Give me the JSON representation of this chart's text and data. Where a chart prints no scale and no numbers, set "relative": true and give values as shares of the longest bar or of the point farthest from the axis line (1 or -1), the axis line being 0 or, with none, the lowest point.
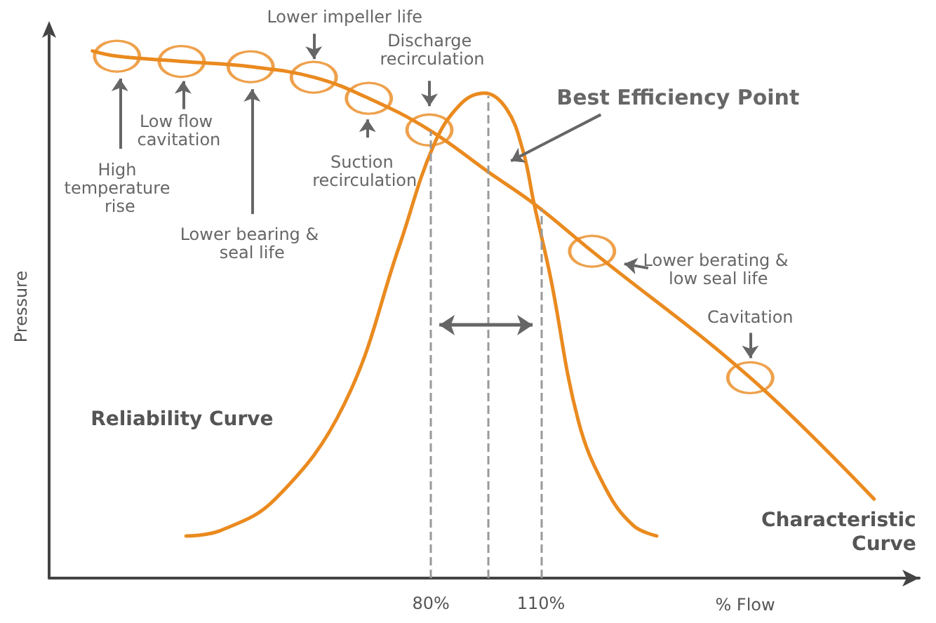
{
  "chart_data": {
    "type": "line",
    "xlabel": "% Flow",
    "ylabel": "Pressure",
    "relative": true,
    "xlim": [
      -24,
      213
    ],
    "xticks": [
      {
        "value": 80,
        "label": "80%"
      },
      {
        "value": 110,
        "label": "110%"
      }
    ],
    "grid": false,
    "legend": false,
    "line_style": "solid",
    "series": [
      {
        "name": "Characteristic Curve",
        "color": "#ea8a1f",
        "x": [
          -12.2,
          -5.5,
          12.1,
          30.9,
          48.1,
          63.1,
          79.6,
          95.7,
          108.1,
          123.9,
          167,
          200.7
        ],
        "values": [
          1,
          0.99,
          0.98,
          0.97,
          0.95,
          0.91,
          0.85,
          0.77,
          0.71,
          0.62,
          0.38,
          0.15
        ]
      },
      {
        "name": "Reliability Curve",
        "color": "#ea8a1f",
        "x": [
          13.3,
          22.6,
          37.6,
          56.4,
          71.4,
          80.7,
          88.2,
          94.6,
          100.6,
          105.1,
          108.1,
          112.6,
          120.1,
          127.6,
          135.1,
          141.5
        ],
        "values": [
          0.08,
          0.09,
          0.15,
          0.33,
          0.63,
          0.82,
          0.9,
          0.92,
          0.89,
          0.81,
          0.71,
          0.57,
          0.3,
          0.17,
          0.1,
          0.08
        ]
      },
      {
        "type": "scatter",
        "marker": "circle",
        "color": "#ea8a1f",
        "x": [
          -5.5,
          12.1,
          30.9,
          48.1,
          63.1,
          79.6,
          123.9,
          167
        ],
        "values": [
          0.99,
          0.98,
          0.97,
          0.95,
          0.91,
          0.85,
          0.62,
          0.38
        ]
      }
    ],
    "ref_lines": [
      {
        "axis": "x",
        "value": 80,
        "color": "#999999",
        "line_style": "dashed"
      },
      {
        "axis": "x",
        "value": 110,
        "color": "#999999",
        "line_style": "dashed"
      },
      {
        "axis": "x",
        "value": 95.7,
        "color": "#999999",
        "line_style": "dashed"
      }
    ],
    "annotations": [
      "Lower impeller life",
      "Discharge recirculation",
      "Low flow cavitation",
      "High temperature rise",
      "Lower bearing & seal life",
      "Suction recirculation",
      "Best Efficiency Point",
      "Lower berating & low seal life",
      "Cavitation"
    ]
  }
}
